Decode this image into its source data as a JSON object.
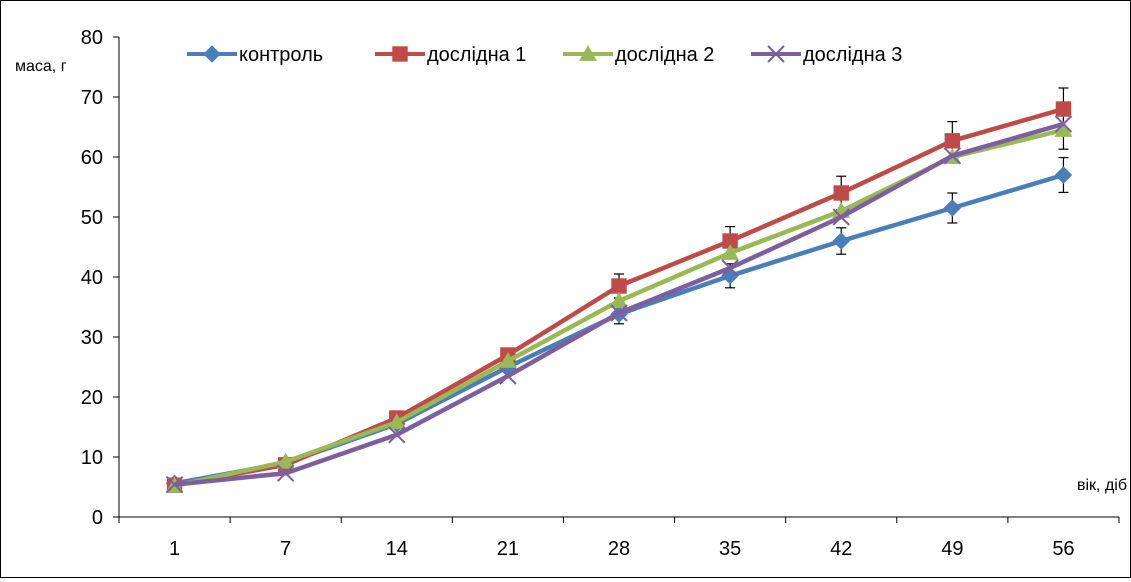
{
  "chart_data": {
    "type": "line",
    "xlabel": "вік, діб",
    "ylabel": "маса, г",
    "categories": [
      "1",
      "7",
      "14",
      "21",
      "28",
      "35",
      "42",
      "49",
      "56"
    ],
    "ylim": [
      0,
      80
    ],
    "yticks": [
      0,
      10,
      20,
      30,
      40,
      50,
      60,
      70,
      80
    ],
    "grid": false,
    "legend_position": "top",
    "series": [
      {
        "name": "контроль",
        "color": "#4A7EBB",
        "marker": "diamond",
        "values": [
          5.6,
          9.0,
          15.5,
          25.0,
          33.8,
          40.2,
          46.0,
          51.5,
          57.0
        ],
        "errors": [
          0,
          0,
          0,
          0,
          1.6,
          2.0,
          2.2,
          2.5,
          2.9
        ]
      },
      {
        "name": "дослідна 1",
        "color": "#BE4B48",
        "marker": "square",
        "values": [
          5.3,
          8.7,
          16.5,
          27.0,
          38.5,
          46.0,
          54.0,
          62.7,
          68.0
        ],
        "errors": [
          0,
          0,
          0,
          0,
          2.0,
          2.4,
          2.8,
          3.2,
          3.5
        ]
      },
      {
        "name": "дослідна 2",
        "color": "#98B954",
        "marker": "triangle",
        "values": [
          5.2,
          9.2,
          15.8,
          26.0,
          36.0,
          44.0,
          51.0,
          60.0,
          64.5
        ],
        "errors": [
          0,
          0,
          0,
          0,
          0,
          0,
          0,
          0,
          3.2
        ]
      },
      {
        "name": "дослідна 3",
        "color": "#7D5FA0",
        "marker": "x",
        "values": [
          5.4,
          7.3,
          13.7,
          23.5,
          34.0,
          41.5,
          50.0,
          60.2,
          65.5
        ],
        "errors": [
          0,
          0,
          0,
          0,
          0,
          0,
          0,
          0,
          0
        ]
      }
    ]
  }
}
